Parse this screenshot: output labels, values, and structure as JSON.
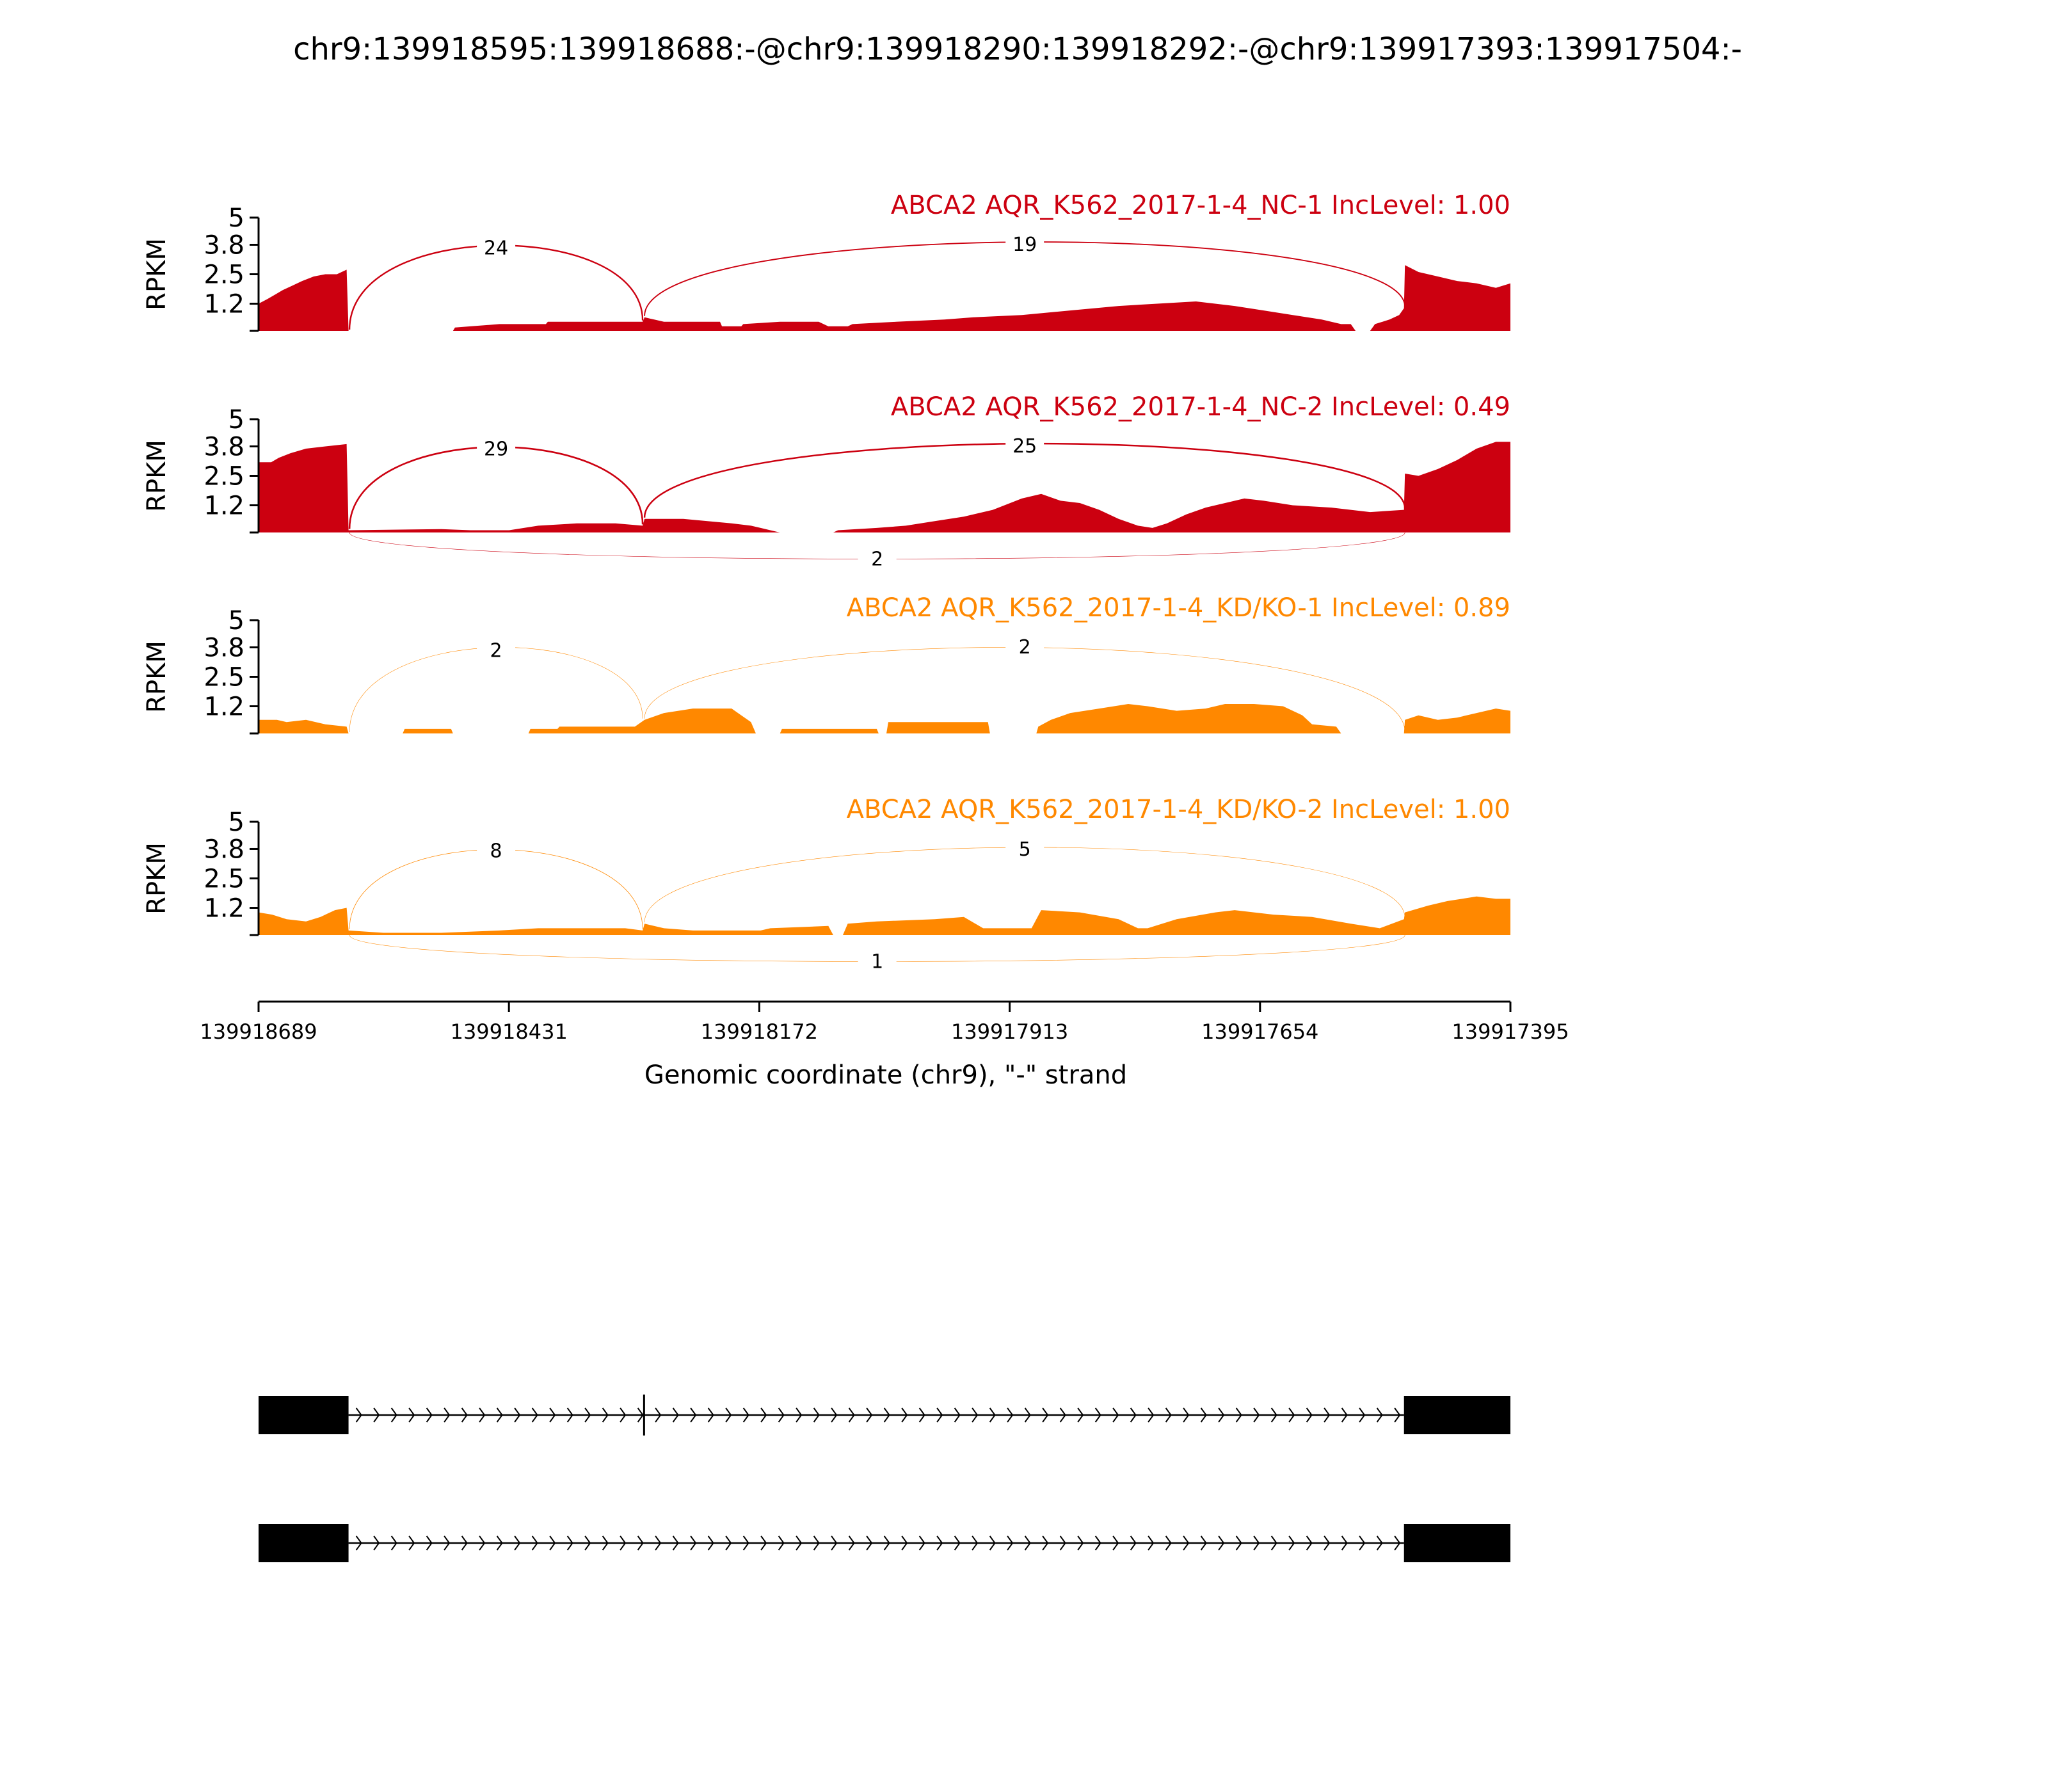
{
  "title": "chr9:139918595:139918688:-@chr9:139918290:139918292:-@chr9:139917393:139917504:-",
  "colors": {
    "nc": "#cc0010",
    "kd": "#ff8800",
    "axis": "#000000",
    "gene": "#000000"
  },
  "chart_data": {
    "type": "area",
    "title": "chr9:139918595:139918688:-@chr9:139918290:139918292:-@chr9:139917393:139917504:-",
    "xlabel": "Genomic coordinate (chr9), \"-\" strand",
    "xlim": [
      139918689,
      139917395
    ],
    "x_ticks": [
      "139918689",
      "139918431",
      "139918172",
      "139917913",
      "139917654",
      "139917395"
    ],
    "y_axis_label": "RPKM",
    "ylim": [
      0,
      5
    ],
    "y_ticks": [
      "5",
      "3.8",
      "2.5",
      "1.2"
    ],
    "series": [
      {
        "name": "ABCA2 AQR_K562_2017-1-4_NC-1 IncLevel: 1.00",
        "color_key": "nc",
        "coverage": [
          [
            139918689,
            1.2
          ],
          [
            139918680,
            1.4
          ],
          [
            139918672,
            1.6
          ],
          [
            139918664,
            1.8
          ],
          [
            139918654,
            2.0
          ],
          [
            139918644,
            2.2
          ],
          [
            139918632,
            2.4
          ],
          [
            139918620,
            2.5
          ],
          [
            139918608,
            2.5
          ],
          [
            139918598,
            2.7
          ],
          [
            139918596,
            0
          ],
          [
            139918590,
            0
          ],
          [
            139918488,
            0
          ],
          [
            139918486,
            0.15
          ],
          [
            139918470,
            0.2
          ],
          [
            139918440,
            0.3
          ],
          [
            139918420,
            0.3
          ],
          [
            139918392,
            0.3
          ],
          [
            139918390,
            0.4
          ],
          [
            139918300,
            0.4
          ],
          [
            139918292,
            0.4
          ],
          [
            139918290,
            0.6
          ],
          [
            139918280,
            0.5
          ],
          [
            139918270,
            0.4
          ],
          [
            139918240,
            0.4
          ],
          [
            139918212,
            0.4
          ],
          [
            139918210,
            0.2
          ],
          [
            139918190,
            0.2
          ],
          [
            139918188,
            0.3
          ],
          [
            139918150,
            0.4
          ],
          [
            139918110,
            0.4
          ],
          [
            139918100,
            0.2
          ],
          [
            139918080,
            0.2
          ],
          [
            139918075,
            0.3
          ],
          [
            139918030,
            0.4
          ],
          [
            139917980,
            0.5
          ],
          [
            139917950,
            0.6
          ],
          [
            139917900,
            0.7
          ],
          [
            139917850,
            0.9
          ],
          [
            139917800,
            1.1
          ],
          [
            139917760,
            1.2
          ],
          [
            139917720,
            1.3
          ],
          [
            139917680,
            1.1
          ],
          [
            139917650,
            0.9
          ],
          [
            139917620,
            0.7
          ],
          [
            139917590,
            0.5
          ],
          [
            139917570,
            0.3
          ],
          [
            139917560,
            0.3
          ],
          [
            139917555,
            0
          ],
          [
            139917540,
            0
          ],
          [
            139917535,
            0.3
          ],
          [
            139917520,
            0.5
          ],
          [
            139917510,
            0.7
          ],
          [
            139917505,
            1.0
          ],
          [
            139917504,
            2.9
          ],
          [
            139917490,
            2.6
          ],
          [
            139917470,
            2.4
          ],
          [
            139917450,
            2.2
          ],
          [
            139917430,
            2.1
          ],
          [
            139917410,
            1.9
          ],
          [
            139917395,
            2.1
          ]
        ],
        "junctions": [
          {
            "from": 139918595,
            "to": 139918292,
            "count": "24",
            "side": "above"
          },
          {
            "from": 139918290,
            "to": 139917504,
            "count": "19",
            "side": "above"
          }
        ]
      },
      {
        "name": "ABCA2 AQR_K562_2017-1-4_NC-2 IncLevel: 0.49",
        "color_key": "nc",
        "coverage": [
          [
            139918689,
            3.1
          ],
          [
            139918676,
            3.1
          ],
          [
            139918668,
            3.3
          ],
          [
            139918656,
            3.5
          ],
          [
            139918640,
            3.7
          ],
          [
            139918620,
            3.8
          ],
          [
            139918598,
            3.9
          ],
          [
            139918596,
            0.1
          ],
          [
            139918500,
            0.15
          ],
          [
            139918470,
            0.1
          ],
          [
            139918430,
            0.1
          ],
          [
            139918400,
            0.3
          ],
          [
            139918360,
            0.4
          ],
          [
            139918320,
            0.4
          ],
          [
            139918292,
            0.3
          ],
          [
            139918290,
            0.6
          ],
          [
            139918250,
            0.6
          ],
          [
            139918200,
            0.4
          ],
          [
            139918180,
            0.3
          ],
          [
            139918170,
            0.2
          ],
          [
            139918160,
            0.1
          ],
          [
            139918150,
            0
          ],
          [
            139918095,
            0
          ],
          [
            139918090,
            0.1
          ],
          [
            139918050,
            0.2
          ],
          [
            139918020,
            0.3
          ],
          [
            139917990,
            0.5
          ],
          [
            139917960,
            0.7
          ],
          [
            139917930,
            1.0
          ],
          [
            139917900,
            1.5
          ],
          [
            139917880,
            1.7
          ],
          [
            139917860,
            1.4
          ],
          [
            139917840,
            1.3
          ],
          [
            139917820,
            1.0
          ],
          [
            139917800,
            0.6
          ],
          [
            139917780,
            0.3
          ],
          [
            139917765,
            0.2
          ],
          [
            139917750,
            0.4
          ],
          [
            139917730,
            0.8
          ],
          [
            139917710,
            1.1
          ],
          [
            139917690,
            1.3
          ],
          [
            139917670,
            1.5
          ],
          [
            139917650,
            1.4
          ],
          [
            139917620,
            1.2
          ],
          [
            139917580,
            1.1
          ],
          [
            139917540,
            0.9
          ],
          [
            139917505,
            1.0
          ],
          [
            139917504,
            2.6
          ],
          [
            139917490,
            2.5
          ],
          [
            139917470,
            2.8
          ],
          [
            139917450,
            3.2
          ],
          [
            139917430,
            3.7
          ],
          [
            139917410,
            4.0
          ],
          [
            139917395,
            4.0
          ]
        ],
        "junctions": [
          {
            "from": 139918595,
            "to": 139918292,
            "count": "29",
            "side": "above"
          },
          {
            "from": 139918290,
            "to": 139917504,
            "count": "25",
            "side": "above"
          },
          {
            "from": 139918595,
            "to": 139917504,
            "count": "2",
            "side": "below"
          }
        ]
      },
      {
        "name": "ABCA2 AQR_K562_2017-1-4_KD/KO-1 IncLevel: 0.89",
        "color_key": "kd",
        "coverage": [
          [
            139918689,
            0.6
          ],
          [
            139918670,
            0.6
          ],
          [
            139918660,
            0.5
          ],
          [
            139918640,
            0.6
          ],
          [
            139918620,
            0.4
          ],
          [
            139918598,
            0.3
          ],
          [
            139918596,
            0
          ],
          [
            139918540,
            0
          ],
          [
            139918538,
            0.2
          ],
          [
            139918490,
            0.2
          ],
          [
            139918488,
            0
          ],
          [
            139918410,
            0
          ],
          [
            139918408,
            0.2
          ],
          [
            139918380,
            0.2
          ],
          [
            139918378,
            0.3
          ],
          [
            139918300,
            0.3
          ],
          [
            139918290,
            0.6
          ],
          [
            139918270,
            0.9
          ],
          [
            139918240,
            1.1
          ],
          [
            139918200,
            1.1
          ],
          [
            139918190,
            0.8
          ],
          [
            139918180,
            0.5
          ],
          [
            139918175,
            0
          ],
          [
            139918150,
            0
          ],
          [
            139918148,
            0.2
          ],
          [
            139918050,
            0.2
          ],
          [
            139918048,
            0
          ],
          [
            139918040,
            0
          ],
          [
            139918038,
            0.5
          ],
          [
            139917935,
            0.5
          ],
          [
            139917933,
            0
          ],
          [
            139917885,
            0
          ],
          [
            139917883,
            0.3
          ],
          [
            139917870,
            0.6
          ],
          [
            139917850,
            0.9
          ],
          [
            139917820,
            1.1
          ],
          [
            139917790,
            1.3
          ],
          [
            139917770,
            1.2
          ],
          [
            139917740,
            1.0
          ],
          [
            139917710,
            1.1
          ],
          [
            139917690,
            1.3
          ],
          [
            139917660,
            1.3
          ],
          [
            139917630,
            1.2
          ],
          [
            139917610,
            0.8
          ],
          [
            139917600,
            0.4
          ],
          [
            139917575,
            0.3
          ],
          [
            139917570,
            0
          ],
          [
            139917505,
            0
          ],
          [
            139917504,
            0.6
          ],
          [
            139917490,
            0.8
          ],
          [
            139917470,
            0.6
          ],
          [
            139917450,
            0.7
          ],
          [
            139917430,
            0.9
          ],
          [
            139917410,
            1.1
          ],
          [
            139917395,
            1.0
          ]
        ],
        "junctions": [
          {
            "from": 139918595,
            "to": 139918292,
            "count": "2",
            "side": "above"
          },
          {
            "from": 139918290,
            "to": 139917504,
            "count": "2",
            "side": "above"
          }
        ]
      },
      {
        "name": "ABCA2 AQR_K562_2017-1-4_KD/KO-2 IncLevel: 1.00",
        "color_key": "kd",
        "coverage": [
          [
            139918689,
            1.0
          ],
          [
            139918675,
            0.9
          ],
          [
            139918660,
            0.7
          ],
          [
            139918640,
            0.6
          ],
          [
            139918625,
            0.8
          ],
          [
            139918610,
            1.1
          ],
          [
            139918598,
            1.2
          ],
          [
            139918596,
            0.2
          ],
          [
            139918560,
            0.1
          ],
          [
            139918500,
            0.1
          ],
          [
            139918440,
            0.2
          ],
          [
            139918400,
            0.3
          ],
          [
            139918340,
            0.3
          ],
          [
            139918310,
            0.3
          ],
          [
            139918292,
            0.2
          ],
          [
            139918290,
            0.5
          ],
          [
            139918270,
            0.3
          ],
          [
            139918240,
            0.2
          ],
          [
            139918170,
            0.2
          ],
          [
            139918160,
            0.3
          ],
          [
            139918100,
            0.4
          ],
          [
            139918095,
            0
          ],
          [
            139918085,
            0
          ],
          [
            139918080,
            0.5
          ],
          [
            139918050,
            0.6
          ],
          [
            139917990,
            0.7
          ],
          [
            139917960,
            0.8
          ],
          [
            139917940,
            0.3
          ],
          [
            139917890,
            0.3
          ],
          [
            139917880,
            1.1
          ],
          [
            139917840,
            1.0
          ],
          [
            139917800,
            0.7
          ],
          [
            139917780,
            0.3
          ],
          [
            139917770,
            0.3
          ],
          [
            139917740,
            0.7
          ],
          [
            139917700,
            1.0
          ],
          [
            139917680,
            1.1
          ],
          [
            139917640,
            0.9
          ],
          [
            139917600,
            0.8
          ],
          [
            139917560,
            0.5
          ],
          [
            139917530,
            0.3
          ],
          [
            139917505,
            0.7
          ],
          [
            139917504,
            1.0
          ],
          [
            139917480,
            1.3
          ],
          [
            139917460,
            1.5
          ],
          [
            139917430,
            1.7
          ],
          [
            139917410,
            1.6
          ],
          [
            139917395,
            1.6
          ]
        ],
        "junctions": [
          {
            "from": 139918595,
            "to": 139918292,
            "count": "8",
            "side": "above"
          },
          {
            "from": 139918290,
            "to": 139917504,
            "count": "5",
            "side": "above"
          },
          {
            "from": 139918595,
            "to": 139917504,
            "count": "1",
            "side": "below"
          }
        ]
      }
    ],
    "gene_models": [
      {
        "exons": [
          [
            139918689,
            139918596
          ],
          [
            139918291,
            139918290
          ],
          [
            139917505,
            139917395
          ]
        ]
      },
      {
        "exons": [
          [
            139918689,
            139918596
          ],
          [
            139917505,
            139917395
          ]
        ]
      }
    ]
  }
}
